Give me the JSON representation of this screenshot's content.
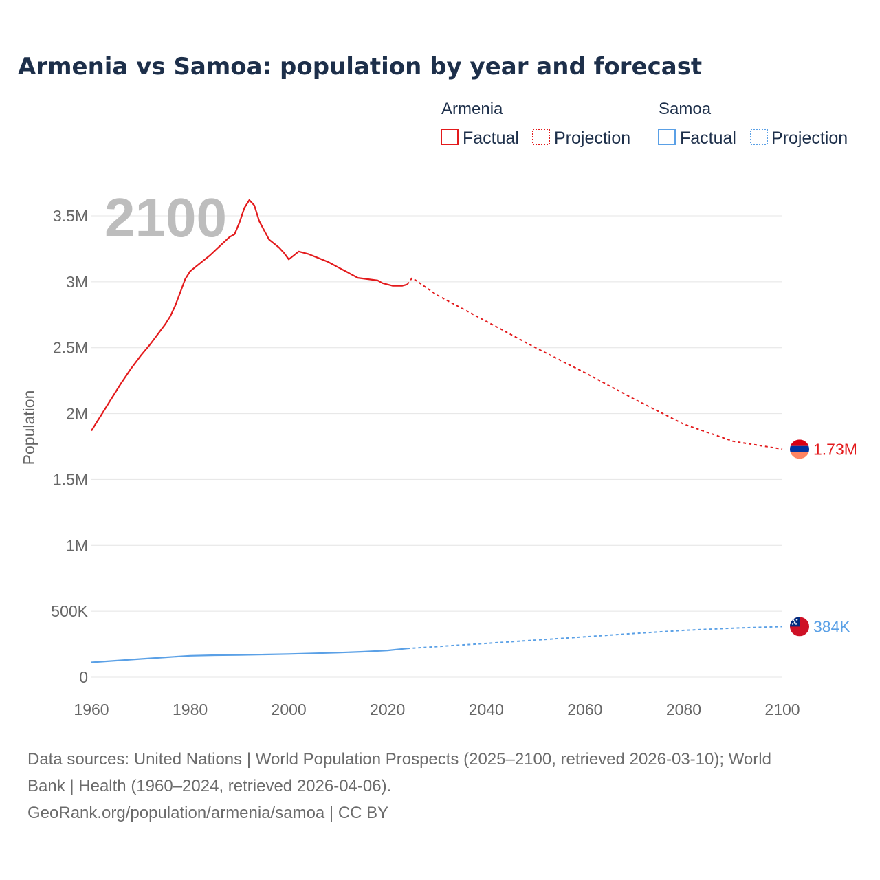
{
  "title": "Armenia vs Samoa: population by year and forecast",
  "current_year": "2100",
  "legend": {
    "groups": [
      {
        "name": "Armenia",
        "color": "#e31a1c",
        "factual": "Factual",
        "projection": "Projection"
      },
      {
        "name": "Samoa",
        "color": "#5aa0e6",
        "factual": "Factual",
        "projection": "Projection"
      }
    ]
  },
  "footer": {
    "line1": "Data sources: United Nations | World Population Prospects (2025–2100, retrieved 2026-03-10); World",
    "line2": "Bank | Health (1960–2024, retrieved 2026-04-06).",
    "line3": "GeoRank.org/population/armenia/samoa | CC BY"
  },
  "chart_data": {
    "type": "line",
    "title": "Armenia vs Samoa: population by year and forecast",
    "xlabel": "",
    "ylabel": "Population",
    "xlim": [
      1960,
      2100
    ],
    "ylim": [
      0,
      3600000
    ],
    "x_ticks": [
      1960,
      1980,
      2000,
      2020,
      2040,
      2060,
      2080,
      2100
    ],
    "x_tick_labels": [
      "1960",
      "1980",
      "2000",
      "2020",
      "2040",
      "2060",
      "2080",
      "2100"
    ],
    "y_ticks": [
      0,
      500000,
      1000000,
      1500000,
      2000000,
      2500000,
      3000000,
      3500000
    ],
    "y_tick_labels": [
      "0",
      "500K",
      "1M",
      "1.5M",
      "2M",
      "2.5M",
      "3M",
      "3.5M"
    ],
    "grid": true,
    "series": [
      {
        "name": "Armenia",
        "color": "#e31a1c",
        "end_label": "1.73M",
        "factual": {
          "x": [
            1960,
            1962,
            1964,
            1966,
            1968,
            1970,
            1972,
            1974,
            1975,
            1976,
            1977,
            1978,
            1979,
            1980,
            1982,
            1984,
            1986,
            1988,
            1989,
            1990,
            1991,
            1992,
            1993,
            1994,
            1996,
            1998,
            1999,
            2000,
            2002,
            2004,
            2006,
            2008,
            2010,
            2012,
            2014,
            2016,
            2018,
            2019,
            2020,
            2021,
            2022,
            2023,
            2024
          ],
          "y": [
            1870000,
            1990000,
            2110000,
            2230000,
            2340000,
            2440000,
            2530000,
            2630000,
            2680000,
            2740000,
            2820000,
            2920000,
            3020000,
            3080000,
            3140000,
            3200000,
            3270000,
            3340000,
            3360000,
            3450000,
            3560000,
            3620000,
            3580000,
            3460000,
            3320000,
            3260000,
            3220000,
            3170000,
            3230000,
            3210000,
            3180000,
            3150000,
            3110000,
            3070000,
            3030000,
            3020000,
            3010000,
            2990000,
            2980000,
            2970000,
            2970000,
            2970000,
            2980000
          ]
        },
        "projection": {
          "x": [
            2024,
            2025,
            2030,
            2040,
            2050,
            2060,
            2070,
            2080,
            2090,
            2100
          ],
          "y": [
            2980000,
            3030000,
            2900000,
            2700000,
            2500000,
            2310000,
            2110000,
            1920000,
            1790000,
            1730000
          ]
        }
      },
      {
        "name": "Samoa",
        "color": "#5aa0e6",
        "end_label": "384K",
        "factual": {
          "x": [
            1960,
            1965,
            1970,
            1975,
            1980,
            1985,
            1990,
            1995,
            2000,
            2005,
            2010,
            2015,
            2020,
            2024
          ],
          "y": [
            112000,
            125000,
            138000,
            151000,
            163000,
            167000,
            169000,
            172000,
            176000,
            181000,
            186000,
            193000,
            203000,
            218000
          ]
        },
        "projection": {
          "x": [
            2024,
            2030,
            2040,
            2050,
            2060,
            2070,
            2080,
            2090,
            2100
          ],
          "y": [
            218000,
            232000,
            256000,
            281000,
            306000,
            332000,
            355000,
            372000,
            384000
          ]
        }
      }
    ]
  }
}
